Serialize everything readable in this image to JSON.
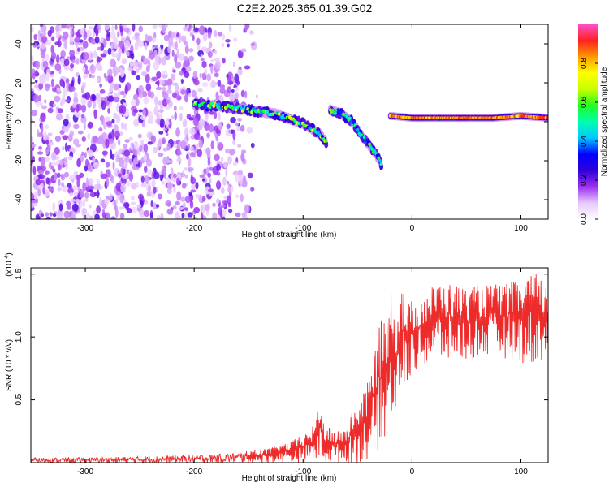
{
  "title": "C2E2.2025.365.01.39.G02",
  "chart_data": [
    {
      "type": "heatmap",
      "xlabel": "Height of straight line (km)",
      "ylabel": "Frequency (Hz)",
      "xlim": [
        -350,
        125
      ],
      "ylim": [
        -50,
        50
      ],
      "xticks": [
        -300,
        -200,
        -100,
        0,
        100
      ],
      "yticks": [
        -40,
        -20,
        0,
        20,
        40
      ],
      "colorbar": {
        "label": "Normalized spectral amplitude",
        "range": [
          0,
          1
        ],
        "ticks": [
          0.0,
          0.2,
          0.4,
          0.6,
          0.8
        ],
        "colormap": [
          "#ffffff",
          "#e8c8ff",
          "#9a30f0",
          "#3000d8",
          "#0000ff",
          "#00c8ff",
          "#00ffb0",
          "#20ff20",
          "#c8ff00",
          "#ffff00",
          "#ff9a00",
          "#ff2020",
          "#ff50c8"
        ]
      },
      "noise_field": {
        "x_range": [
          -350,
          -150
        ],
        "f_range": [
          -50,
          50
        ]
      },
      "features": [
        {
          "name": "signal-trace-main",
          "x": [
            -200,
            -175,
            -150,
            -125,
            -100,
            -85,
            -78
          ],
          "f": [
            9,
            8,
            6,
            4,
            -1,
            -6,
            -11
          ],
          "peak_amplitude": 0.45
        },
        {
          "name": "signal-trace-branch",
          "x": [
            -75,
            -65,
            -55,
            -45,
            -35,
            -28
          ],
          "f": [
            6,
            4,
            0,
            -8,
            -15,
            -22
          ],
          "peak_amplitude": 0.35
        },
        {
          "name": "signal-tone",
          "x": [
            -20,
            0,
            25,
            50,
            75,
            100,
            125
          ],
          "f": [
            3,
            2,
            2,
            2,
            2,
            3,
            2
          ],
          "peak_amplitude": 0.95
        }
      ]
    },
    {
      "type": "line",
      "xlabel": "Height of straight line (km)",
      "ylabel": "SNR (10 * v/v)",
      "y_multiplier": "(x10^4)",
      "xlim": [
        -350,
        125
      ],
      "ylim": [
        0,
        1.55
      ],
      "xticks": [
        -300,
        -200,
        -100,
        0,
        100
      ],
      "yticks": [
        0.5,
        1.0,
        1.5
      ],
      "series": [
        {
          "color": "#ee2b2b",
          "envelope": {
            "x": [
              -350,
              -300,
              -250,
              -200,
              -160,
              -130,
              -110,
              -100,
              -90,
              -85,
              -80,
              -70,
              -60,
              -50,
              -40,
              -35,
              -30,
              -25,
              -20,
              -17,
              -15,
              -12,
              -10,
              -5,
              0,
              10,
              25,
              50,
              75,
              100,
              110,
              125
            ],
            "low": [
              0.0,
              0.0,
              0.0,
              0.0,
              0.0,
              0.0,
              0.0,
              0.0,
              0.0,
              0.0,
              0.0,
              0.0,
              0.0,
              0.0,
              0.0,
              0.05,
              0.1,
              0.2,
              0.3,
              0.35,
              0.4,
              0.5,
              0.55,
              0.6,
              0.7,
              0.75,
              0.8,
              0.8,
              0.85,
              0.8,
              0.75,
              0.85
            ],
            "high": [
              0.04,
              0.04,
              0.05,
              0.06,
              0.08,
              0.12,
              0.18,
              0.22,
              0.3,
              0.5,
              0.3,
              0.25,
              0.3,
              0.5,
              0.65,
              0.9,
              1.1,
              1.2,
              1.35,
              1.55,
              1.2,
              1.3,
              1.5,
              1.25,
              1.3,
              1.35,
              1.45,
              1.4,
              1.42,
              1.45,
              1.55,
              1.4
            ]
          }
        }
      ]
    }
  ]
}
